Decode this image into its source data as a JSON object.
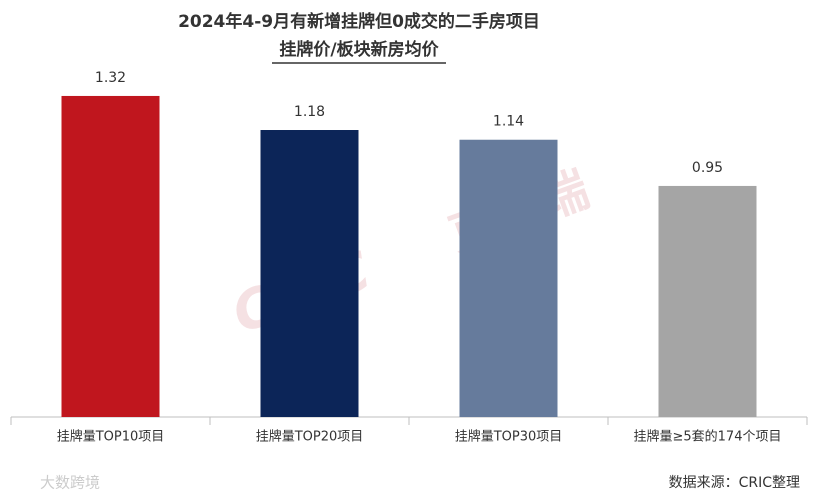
{
  "chart_data": {
    "type": "bar",
    "title": [
      "2024年4-9月有新增挂牌但0成交的二手房项目",
      "挂牌价/板块新房均价"
    ],
    "categories": [
      "挂牌量TOP10项目",
      "挂牌量TOP20项目",
      "挂牌量TOP30项目",
      "挂牌量≥5套的174个项目"
    ],
    "values": [
      1.32,
      1.18,
      1.14,
      0.95
    ],
    "colors": [
      "#c0161e",
      "#0c2558",
      "#667b9c",
      "#a5a5a5"
    ],
    "ylim": [
      0,
      1.4
    ],
    "source": "数据来源：CRIC整理",
    "watermarks": [
      "CRIC",
      "克而瑞",
      "大数跨境"
    ]
  }
}
